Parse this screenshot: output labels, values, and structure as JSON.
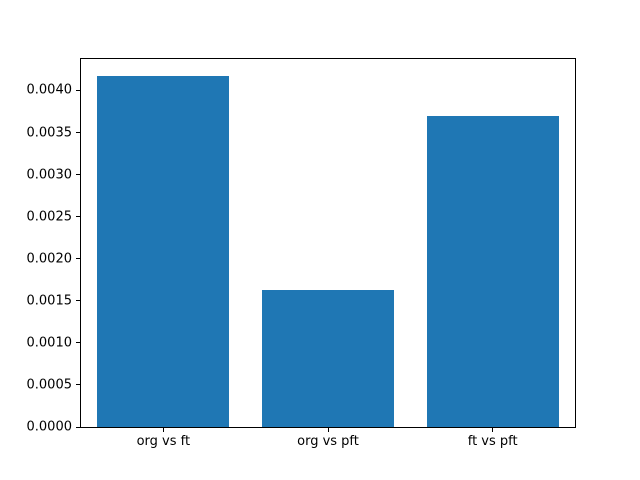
{
  "chart_data": {
    "type": "bar",
    "categories": [
      "org vs ft",
      "org vs pft",
      "ft vs pft"
    ],
    "values": [
      0.00417,
      0.00163,
      0.0037
    ],
    "title": "",
    "xlabel": "",
    "ylabel": "",
    "ylim": [
      0,
      0.004374
    ],
    "yticks": [
      0.0,
      0.0005,
      0.001,
      0.0015,
      0.002,
      0.0025,
      0.003,
      0.0035,
      0.004
    ],
    "ytick_labels": [
      "0.0000",
      "0.0005",
      "0.0010",
      "0.0015",
      "0.0020",
      "0.0025",
      "0.0030",
      "0.0035",
      "0.0040"
    ],
    "bar_color": "#1f77b4",
    "bar_width_fraction": 0.8,
    "grid": false,
    "legend": "none",
    "background_color": "#ffffff",
    "axis_color": "#000000"
  }
}
